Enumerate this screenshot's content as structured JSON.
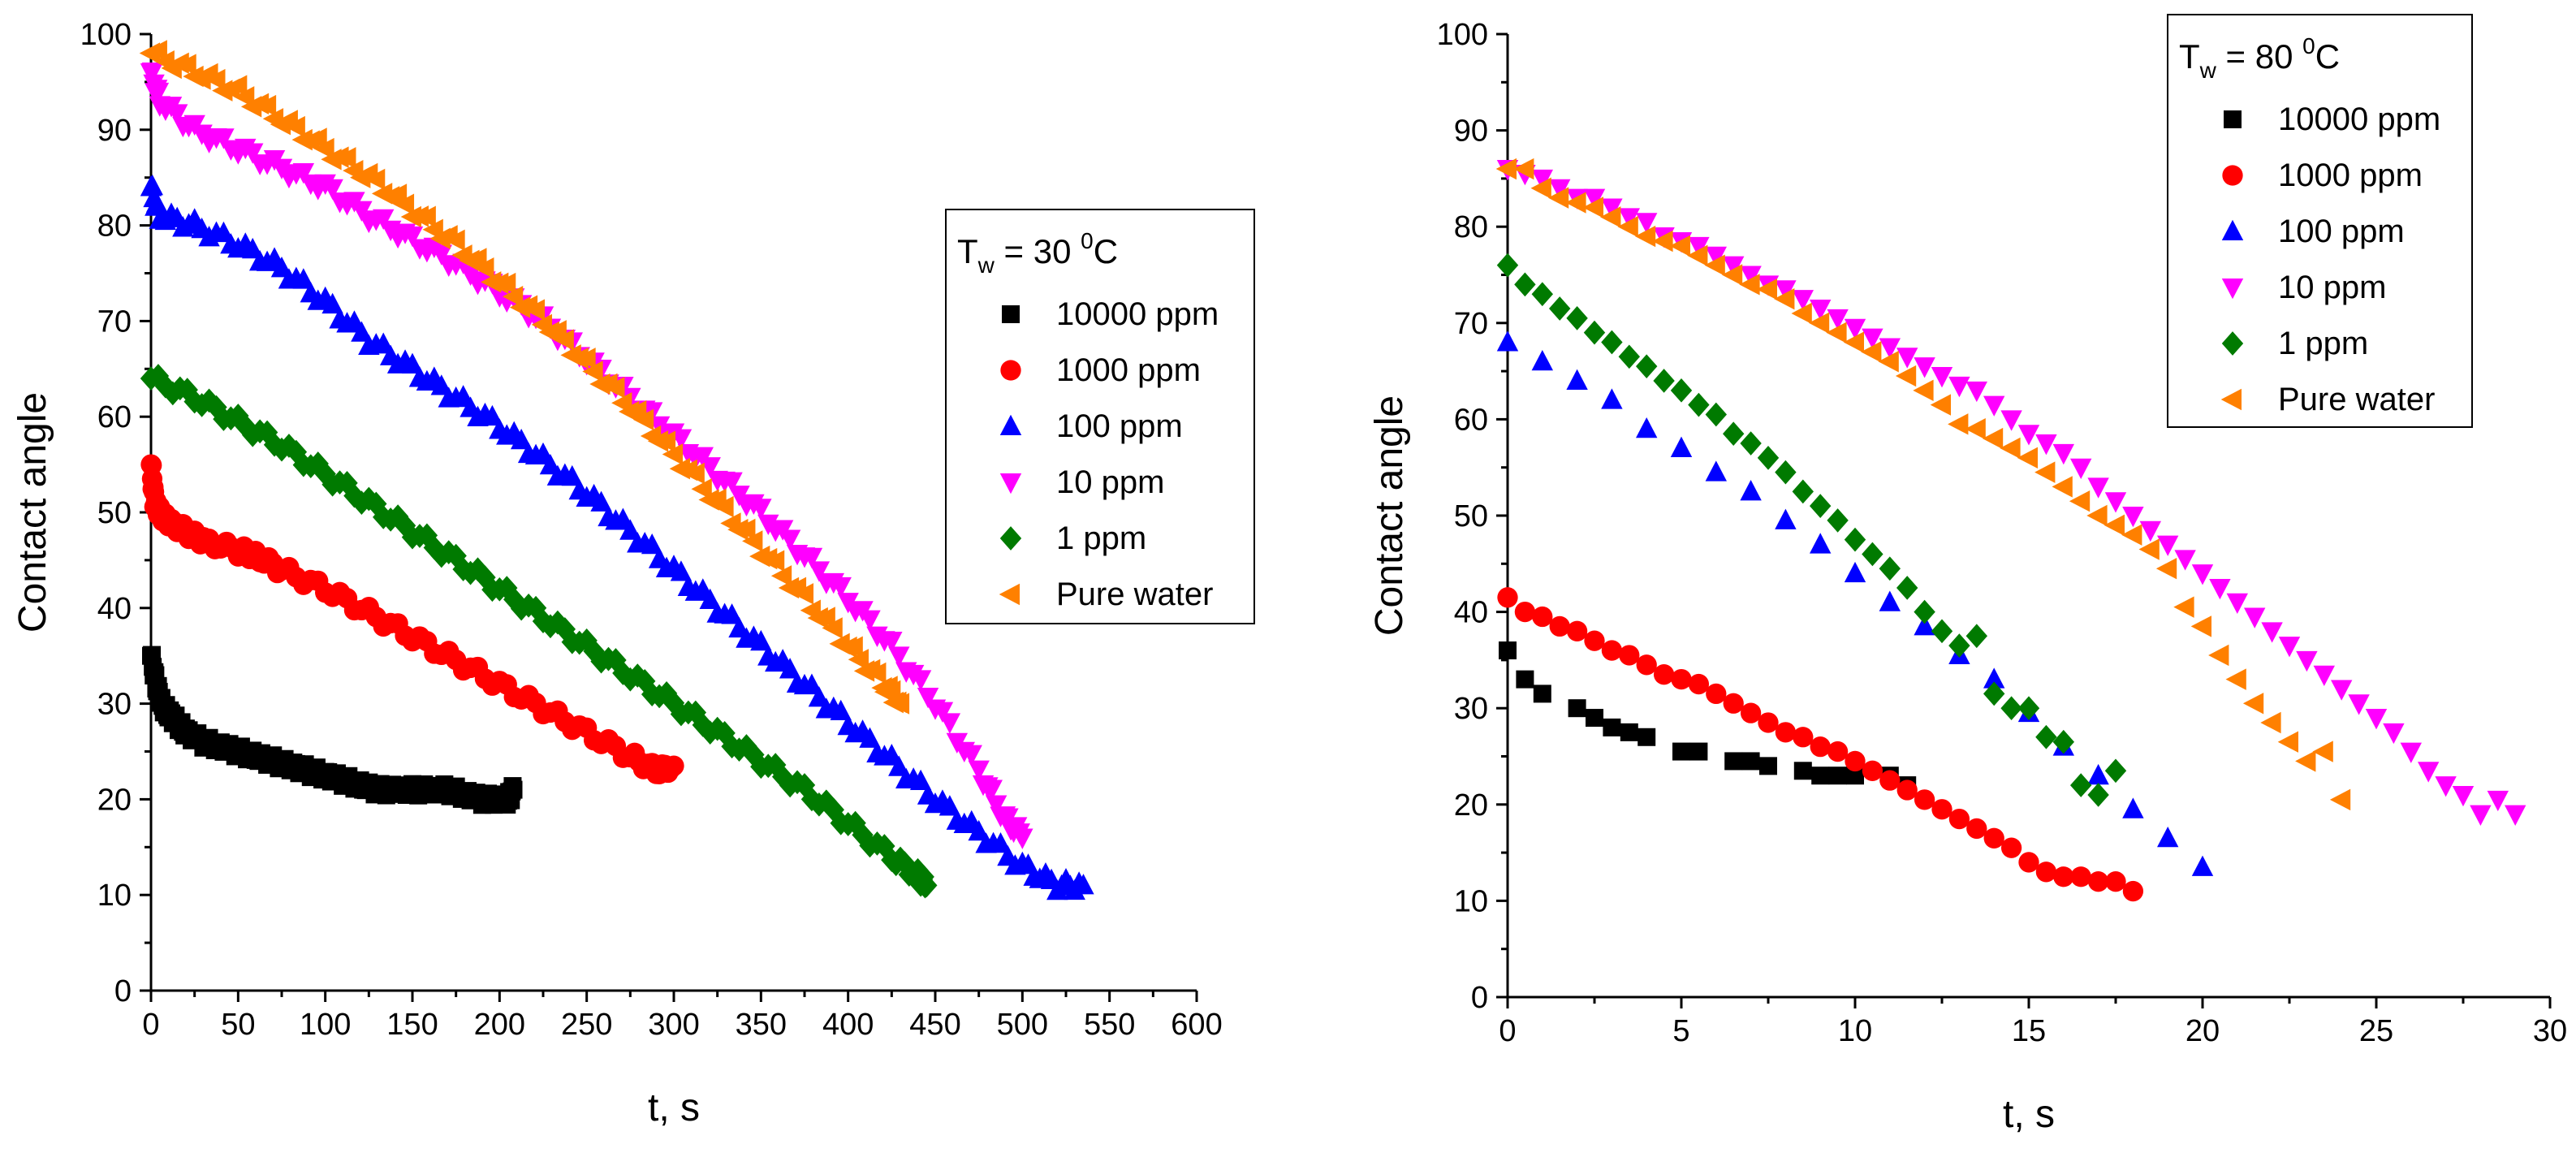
{
  "chart_data": [
    {
      "type": "scatter",
      "title": "",
      "xlabel": "t, s",
      "ylabel": "Contact angle",
      "xlim": [
        0,
        600
      ],
      "ylim": [
        0,
        100
      ],
      "xticks": [
        "0",
        "50",
        "100",
        "150",
        "200",
        "250",
        "300",
        "350",
        "400",
        "450",
        "500",
        "550",
        "600"
      ],
      "yticks": [
        "0",
        "10",
        "20",
        "30",
        "40",
        "50",
        "60",
        "70",
        "80",
        "90",
        "100"
      ],
      "legend": {
        "title_main": "T",
        "title_sub": "w",
        "title_mid": " = 30 ",
        "title_sup": "0",
        "title_end": "C",
        "placement": "right"
      },
      "series": [
        {
          "name": "10000 ppm",
          "marker": "square",
          "color": "#000000",
          "x": [
            0,
            3,
            6,
            10,
            15,
            20,
            30,
            40,
            50,
            60,
            70,
            80,
            90,
            100,
            110,
            120,
            130,
            140,
            150,
            160,
            170,
            180,
            190,
            200,
            205,
            208
          ],
          "y": [
            35,
            32,
            30,
            29,
            28,
            27,
            26,
            25.5,
            25,
            24.5,
            24,
            23.5,
            23,
            22.5,
            22,
            21.5,
            21,
            21,
            21,
            21,
            21,
            20.5,
            20,
            20,
            20,
            21
          ]
        },
        {
          "name": "1000 ppm",
          "marker": "circle",
          "color": "#ff0000",
          "x": [
            0,
            2,
            5,
            10,
            20,
            30,
            50,
            60,
            75,
            100,
            125,
            150,
            175,
            200,
            225,
            250,
            275,
            290,
            300
          ],
          "y": [
            55,
            51,
            50,
            49,
            48,
            47,
            46,
            45.5,
            44,
            42,
            39.5,
            37,
            34.5,
            32,
            29.5,
            27,
            24.5,
            23,
            23.5
          ]
        },
        {
          "name": "100 ppm",
          "marker": "triangle-up",
          "color": "#0000ff",
          "x": [
            0,
            5,
            25,
            50,
            75,
            100,
            125,
            150,
            175,
            200,
            225,
            250,
            275,
            300,
            325,
            350,
            375,
            400,
            425,
            450,
            475,
            500,
            520,
            535
          ],
          "y": [
            84,
            81,
            80,
            78,
            75.5,
            72,
            68,
            65,
            62,
            59,
            55.5,
            52,
            48,
            44,
            40,
            36,
            32,
            28,
            24,
            20,
            16.5,
            13,
            11,
            11
          ]
        },
        {
          "name": "10 ppm",
          "marker": "triangle-down",
          "color": "#ff00ff",
          "x": [
            0,
            5,
            25,
            50,
            75,
            100,
            125,
            150,
            175,
            200,
            225,
            250,
            275,
            300,
            325,
            350,
            375,
            400,
            425,
            450,
            475,
            490,
            500
          ],
          "y": [
            96,
            93,
            90,
            88,
            86,
            84,
            81,
            78.5,
            76,
            73,
            70,
            66,
            62,
            58,
            54,
            50,
            45.5,
            41,
            36,
            30,
            23,
            18,
            16
          ]
        },
        {
          "name": "1 ppm",
          "marker": "diamond",
          "color": "#007a00",
          "x": [
            0,
            25,
            50,
            75,
            100,
            125,
            150,
            175,
            200,
            225,
            250,
            275,
            300,
            325,
            350,
            375,
            400,
            425,
            440,
            445
          ],
          "y": [
            64,
            62,
            59.5,
            57,
            54,
            51,
            48,
            45,
            42,
            39,
            36,
            33,
            30,
            27,
            24,
            21,
            17.5,
            14,
            12,
            11
          ]
        },
        {
          "name": "Pure water",
          "marker": "triangle-left",
          "color": "#ff8000",
          "x": [
            0,
            25,
            50,
            75,
            100,
            125,
            150,
            175,
            200,
            225,
            250,
            275,
            300,
            325,
            350,
            375,
            400,
            420,
            430
          ],
          "y": [
            98,
            96,
            94,
            91,
            88,
            85,
            81.5,
            78,
            74,
            70,
            65.5,
            61,
            56,
            51,
            46,
            41,
            36,
            32,
            30
          ]
        }
      ]
    },
    {
      "type": "scatter",
      "title": "",
      "xlabel": "t, s",
      "ylabel": "Contact angle",
      "xlim": [
        0,
        30
      ],
      "ylim": [
        0,
        100
      ],
      "xticks": [
        "0",
        "5",
        "10",
        "15",
        "20",
        "25",
        "30"
      ],
      "yticks": [
        "0",
        "10",
        "20",
        "30",
        "40",
        "50",
        "60",
        "70",
        "80",
        "90",
        "100"
      ],
      "legend": {
        "title_main": "T",
        "title_sub": "w",
        "title_mid": " = 80 ",
        "title_sup": "0",
        "title_end": "C",
        "placement": "top-right"
      },
      "series": [
        {
          "name": "10000 ppm",
          "marker": "square",
          "color": "#000000",
          "x": [
            0,
            0.5,
            1,
            2,
            2.5,
            3,
            3.5,
            4,
            5,
            5.5,
            6.5,
            7,
            7.5,
            8.5,
            9,
            9.5,
            10,
            11,
            11.5
          ],
          "y": [
            36,
            33,
            31.5,
            30,
            29,
            28,
            27.5,
            27,
            25.5,
            25.5,
            24.5,
            24.5,
            24,
            23.5,
            23,
            23,
            23,
            23,
            22
          ]
        },
        {
          "name": "1000 ppm",
          "marker": "circle",
          "color": "#ff0000",
          "x": [
            0,
            0.5,
            1,
            1.5,
            2,
            2.5,
            3,
            3.5,
            4,
            4.5,
            5,
            5.5,
            6,
            6.5,
            7,
            7.5,
            8,
            8.5,
            9,
            9.5,
            10,
            10.5,
            11,
            11.5,
            12,
            12.5,
            13,
            13.5,
            14,
            14.5,
            15,
            15.5,
            16,
            16.5,
            17,
            17.5,
            18
          ],
          "y": [
            41.5,
            40,
            39.5,
            38.5,
            38,
            37,
            36,
            35.5,
            34.5,
            33.5,
            33,
            32.5,
            31.5,
            30.5,
            29.5,
            28.5,
            27.5,
            27,
            26,
            25.5,
            24.5,
            23.5,
            22.5,
            21.5,
            20.5,
            19.5,
            18.5,
            17.5,
            16.5,
            15.5,
            14,
            13,
            12.5,
            12.5,
            12,
            12,
            11
          ]
        },
        {
          "name": "100 ppm",
          "marker": "triangle-up",
          "color": "#0000ff",
          "x": [
            0,
            1,
            2,
            3,
            4,
            5,
            6,
            7,
            8,
            9,
            10,
            11,
            12,
            13,
            14,
            15,
            16,
            17,
            18,
            19,
            20
          ],
          "y": [
            68,
            66,
            64,
            62,
            59,
            57,
            54.5,
            52.5,
            49.5,
            47,
            44,
            41,
            38.5,
            35.5,
            33,
            29.5,
            26,
            23,
            19.5,
            16.5,
            13.5
          ]
        },
        {
          "name": "10 ppm",
          "marker": "triangle-down",
          "color": "#ff00ff",
          "x": [
            0,
            0.5,
            1,
            1.5,
            2,
            2.5,
            3,
            3.5,
            4,
            4.5,
            5,
            5.5,
            6,
            6.5,
            7,
            7.5,
            8,
            8.5,
            9,
            9.5,
            10,
            10.5,
            11,
            11.5,
            12,
            12.5,
            13,
            13.5,
            14,
            14.5,
            15,
            15.5,
            16,
            16.5,
            17,
            17.5,
            18,
            18.5,
            19,
            19.5,
            20,
            20.5,
            21,
            21.5,
            22,
            22.5,
            23,
            23.5,
            24,
            24.5,
            25,
            25.5,
            26,
            26.5,
            27,
            27.5,
            28,
            28.5,
            29
          ],
          "y": [
            86,
            85.5,
            85,
            84,
            83,
            83,
            82,
            81,
            80.5,
            79,
            78.5,
            78,
            77,
            76,
            75,
            74,
            73.5,
            72.5,
            71.5,
            70.5,
            69.5,
            68.5,
            67.5,
            66.5,
            65.5,
            64.5,
            63.5,
            63,
            61.5,
            60,
            58.5,
            57.5,
            56.5,
            55,
            53,
            51.5,
            50,
            48.5,
            47,
            45.5,
            44,
            42.5,
            41,
            39.5,
            38,
            36.5,
            35,
            33.5,
            32,
            30.5,
            29,
            27.5,
            25.5,
            23.5,
            22,
            21,
            19,
            20.5,
            19
          ]
        },
        {
          "name": "1 ppm",
          "marker": "diamond",
          "color": "#007a00",
          "x": [
            0,
            0.5,
            1,
            1.5,
            2,
            2.5,
            3,
            3.5,
            4,
            4.5,
            5,
            5.5,
            6,
            6.5,
            7,
            7.5,
            8,
            8.5,
            9,
            9.5,
            10,
            10.5,
            11,
            11.5,
            12,
            12.5,
            13,
            13.5,
            14,
            14.5,
            15,
            15.5,
            16,
            16.5,
            17,
            17.5
          ],
          "y": [
            76,
            74,
            73,
            71.5,
            70.5,
            69,
            68,
            66.5,
            65.5,
            64,
            63,
            61.5,
            60.5,
            58.5,
            57.5,
            56,
            54.5,
            52.5,
            51,
            49.5,
            47.5,
            46,
            44.5,
            42.5,
            40,
            38,
            36.5,
            37.5,
            31.5,
            30,
            30,
            27,
            26.5,
            22,
            21,
            23.5
          ]
        },
        {
          "name": "Pure water",
          "marker": "triangle-left",
          "color": "#ff8000",
          "x": [
            0,
            0.5,
            1,
            1.5,
            2,
            2.5,
            3,
            3.5,
            4,
            4.5,
            5,
            5.5,
            6,
            6.5,
            7,
            7.5,
            8,
            8.5,
            9,
            9.5,
            10,
            10.5,
            11,
            11.5,
            12,
            12.5,
            13,
            13.5,
            14,
            14.5,
            15,
            15.5,
            16,
            16.5,
            17,
            17.5,
            18,
            18.5,
            19,
            19.5,
            20,
            20.5,
            21,
            21.5,
            22,
            22.5,
            23,
            23.5,
            24
          ],
          "y": [
            86,
            86,
            84,
            83,
            82.5,
            82,
            81,
            80,
            79,
            78.5,
            78,
            77,
            76,
            75,
            74,
            73.5,
            72.5,
            71,
            70,
            69,
            68,
            67,
            66,
            64.5,
            63,
            61.5,
            59.5,
            59,
            58,
            57,
            56,
            54.5,
            53,
            51.5,
            50,
            49,
            48,
            46.5,
            44.5,
            40.5,
            38.5,
            35.5,
            33,
            30.5,
            28.5,
            26.5,
            24.5,
            25.5,
            20.5
          ]
        }
      ]
    }
  ]
}
